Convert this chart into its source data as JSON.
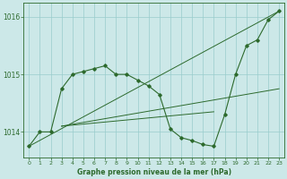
{
  "title": "Graphe pression niveau de la mer (hPa)",
  "bg_color": "#cce8e8",
  "grid_color": "#99cccc",
  "line_color": "#2d6a2d",
  "xlim": [
    -0.5,
    23.5
  ],
  "ylim": [
    1013.55,
    1016.25
  ],
  "yticks": [
    1014,
    1015,
    1016
  ],
  "xticks": [
    0,
    1,
    2,
    3,
    4,
    5,
    6,
    7,
    8,
    9,
    10,
    11,
    12,
    13,
    14,
    15,
    16,
    17,
    18,
    19,
    20,
    21,
    22,
    23
  ],
  "series1": {
    "x": [
      0,
      1,
      2,
      3,
      4,
      5,
      6,
      7,
      8,
      9,
      10,
      11,
      12,
      13,
      14,
      15,
      16,
      17,
      18,
      19,
      20,
      21,
      22,
      23
    ],
    "y": [
      1013.75,
      1014.0,
      1014.0,
      1014.75,
      1015.0,
      1015.05,
      1015.1,
      1015.15,
      1015.0,
      1015.0,
      1014.9,
      1014.8,
      1014.65,
      1014.05,
      1013.9,
      1013.85,
      1013.78,
      1013.75,
      1014.3,
      1015.0,
      1015.5,
      1015.6,
      1015.95,
      1016.1
    ]
  },
  "line1": {
    "x": [
      0,
      23
    ],
    "y": [
      1013.75,
      1016.1
    ]
  },
  "line2": {
    "x": [
      3,
      23
    ],
    "y": [
      1014.1,
      1014.75
    ]
  },
  "line3": {
    "x": [
      3,
      17
    ],
    "y": [
      1014.1,
      1014.35
    ]
  }
}
